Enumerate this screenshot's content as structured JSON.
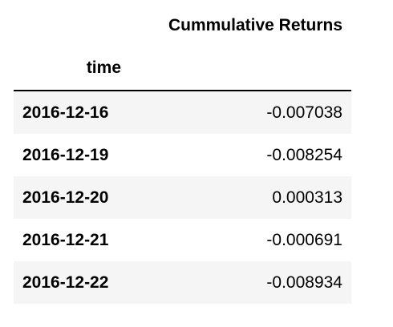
{
  "table": {
    "columns": [
      "Cummulative Returns"
    ],
    "index_name": "time",
    "rows": [
      {
        "index": "2016-12-16",
        "value": "-0.007038"
      },
      {
        "index": "2016-12-19",
        "value": "-0.008254"
      },
      {
        "index": "2016-12-20",
        "value": "0.000313"
      },
      {
        "index": "2016-12-21",
        "value": "-0.000691"
      },
      {
        "index": "2016-12-22",
        "value": "-0.008934"
      }
    ]
  },
  "colors": {
    "stripe": "#f5f5f5",
    "header_rule": "#000000"
  }
}
